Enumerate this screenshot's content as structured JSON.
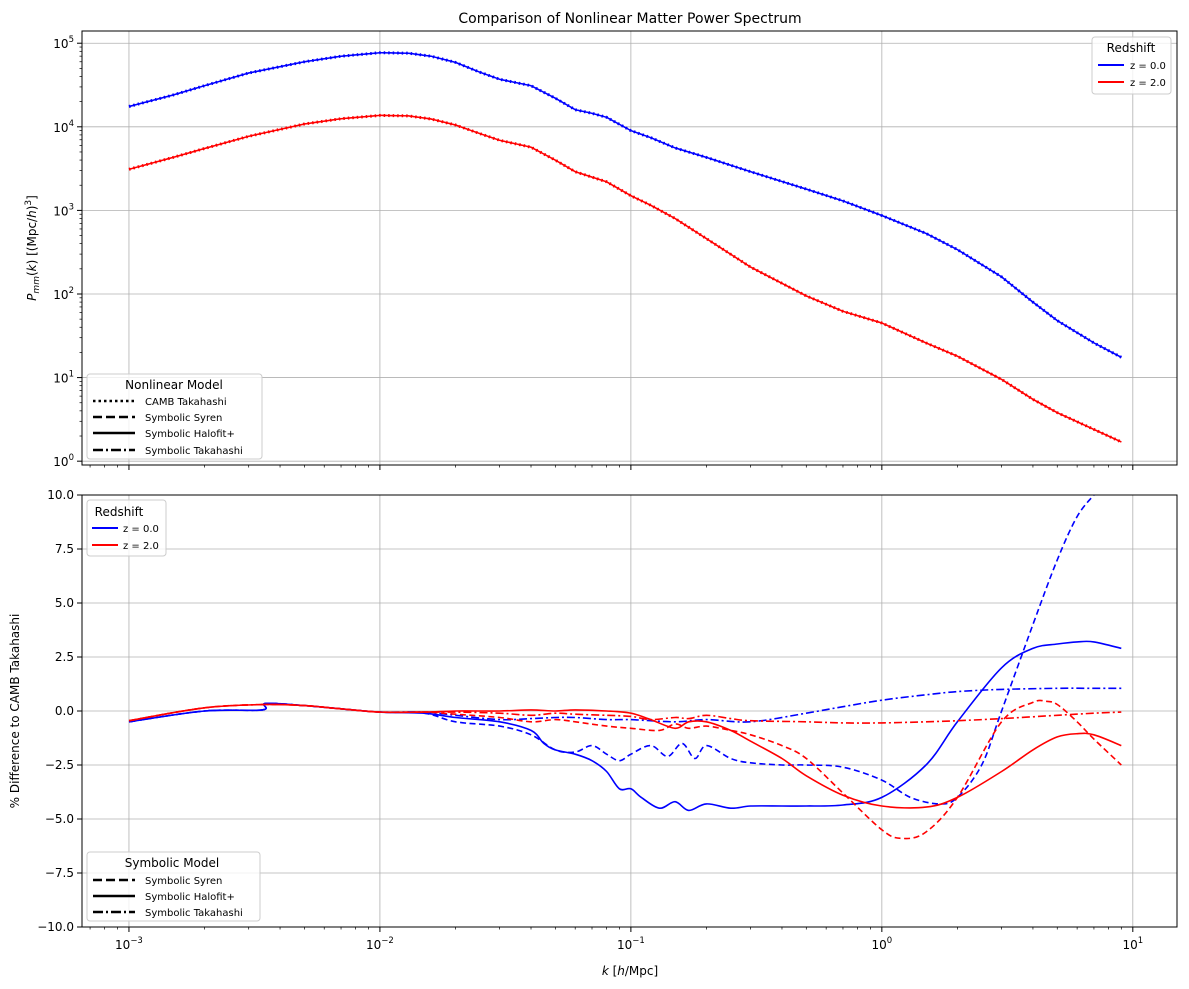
{
  "chart_data": [
    {
      "type": "line",
      "title": "Comparison of Nonlinear Matter Power Spectrum",
      "xlabel": "",
      "ylabel": "P_mm(k) [(Mpc/h)^3]",
      "xscale": "log",
      "yscale": "log",
      "xlim": [
        0.00065,
        15
      ],
      "ylim": [
        0.9,
        140000
      ],
      "x_ticks": [
        "10^-3",
        "10^-2",
        "10^-1",
        "10^0",
        "10^1"
      ],
      "y_ticks": [
        {
          "value": 1,
          "label": "10^0"
        },
        {
          "value": 10,
          "label": "10^1"
        },
        {
          "value": 100,
          "label": "10^2"
        },
        {
          "value": 1000,
          "label": "10^3"
        },
        {
          "value": 10000,
          "label": "10^4"
        },
        {
          "value": 100000,
          "label": "10^5"
        }
      ],
      "grid": true,
      "legends": [
        {
          "title": "Redshift",
          "placement": "top-right",
          "entries": [
            {
              "label": "z = 0.0",
              "color": "#0000ff",
              "style": "solid"
            },
            {
              "label": "z = 2.0",
              "color": "#ff0000",
              "style": "solid"
            }
          ]
        },
        {
          "title": "Nonlinear Model",
          "placement": "bottom-left",
          "entries": [
            {
              "label": "CAMB Takahashi",
              "color": "#000000",
              "style": "dotted"
            },
            {
              "label": "Symbolic Syren",
              "color": "#000000",
              "style": "dashed"
            },
            {
              "label": "Symbolic Halofit+",
              "color": "#000000",
              "style": "solid"
            },
            {
              "label": "Symbolic Takahashi",
              "color": "#000000",
              "style": "dashdot"
            }
          ]
        }
      ],
      "series": [
        {
          "redshift": "z = 0.0",
          "color": "#0000ff",
          "x": [
            0.001,
            0.0015,
            0.002,
            0.003,
            0.005,
            0.007,
            0.01,
            0.013,
            0.016,
            0.02,
            0.025,
            0.03,
            0.04,
            0.05,
            0.06,
            0.07,
            0.08,
            0.1,
            0.12,
            0.15,
            0.2,
            0.3,
            0.5,
            0.7,
            1.0,
            1.5,
            2.0,
            3.0,
            4.0,
            5.0,
            7.0,
            9.0
          ],
          "y": [
            17500,
            24000,
            31000,
            44000,
            60000,
            70000,
            77000,
            76000,
            70000,
            59000,
            45000,
            37000,
            31000,
            22000,
            16000,
            14500,
            13000,
            9000,
            7400,
            5600,
            4300,
            2900,
            1800,
            1300,
            870,
            530,
            340,
            160,
            80,
            48,
            26,
            17.5
          ]
        },
        {
          "redshift": "z = 2.0",
          "color": "#ff0000",
          "x": [
            0.001,
            0.0015,
            0.002,
            0.003,
            0.005,
            0.007,
            0.01,
            0.013,
            0.016,
            0.02,
            0.025,
            0.03,
            0.04,
            0.05,
            0.06,
            0.07,
            0.08,
            0.1,
            0.12,
            0.15,
            0.2,
            0.3,
            0.5,
            0.7,
            1.0,
            1.5,
            2.0,
            3.0,
            4.0,
            5.0,
            7.0,
            9.0
          ],
          "y": [
            3100,
            4300,
            5500,
            7700,
            10800,
            12500,
            13700,
            13500,
            12400,
            10500,
            8300,
            6900,
            5700,
            4000,
            2900,
            2500,
            2200,
            1500,
            1150,
            800,
            460,
            210,
            95,
            62,
            45,
            26,
            18,
            9.5,
            5.5,
            3.8,
            2.4,
            1.7
          ]
        }
      ]
    },
    {
      "type": "line",
      "title": "",
      "xlabel": "k [h/Mpc]",
      "ylabel": "% Difference to CAMB Takahashi",
      "xscale": "log",
      "xlim": [
        0.00065,
        15
      ],
      "ylim": [
        -10,
        10
      ],
      "x_ticks": [
        "10^-3",
        "10^-2",
        "10^-1",
        "10^0",
        "10^1"
      ],
      "y_ticks": [
        "−10.0",
        "−7.5",
        "−5.0",
        "−2.5",
        "0.0",
        "2.5",
        "5.0",
        "7.5",
        "10.0"
      ],
      "grid": true,
      "legends": [
        {
          "title": "Redshift",
          "placement": "top-left",
          "entries": [
            {
              "label": "z = 0.0",
              "color": "#0000ff",
              "style": "solid"
            },
            {
              "label": "z = 2.0",
              "color": "#ff0000",
              "style": "solid"
            }
          ]
        },
        {
          "title": "Symbolic Model",
          "placement": "bottom-left",
          "entries": [
            {
              "label": "Symbolic Syren",
              "color": "#000000",
              "style": "dashed"
            },
            {
              "label": "Symbolic Halofit+",
              "color": "#000000",
              "style": "solid"
            },
            {
              "label": "Symbolic Takahashi",
              "color": "#000000",
              "style": "dashdot"
            }
          ]
        }
      ],
      "series": [
        {
          "model": "Symbolic Syren",
          "redshift": "z = 0.0",
          "color": "#0000ff",
          "style": "dashed",
          "x": [
            0.001,
            0.002,
            0.0034,
            0.0035,
            0.005,
            0.007,
            0.01,
            0.015,
            0.02,
            0.03,
            0.04,
            0.05,
            0.06,
            0.07,
            0.08,
            0.09,
            0.1,
            0.12,
            0.14,
            0.16,
            0.18,
            0.2,
            0.25,
            0.3,
            0.4,
            0.5,
            0.7,
            1.0,
            1.3,
            1.7,
            2.0,
            2.5,
            3.0,
            4.0,
            5.0,
            6.0,
            7.0
          ],
          "y": [
            -0.5,
            0.0,
            0.05,
            0.35,
            0.25,
            0.1,
            -0.05,
            -0.1,
            -0.5,
            -0.7,
            -1.1,
            -1.8,
            -1.9,
            -1.6,
            -2.0,
            -2.3,
            -2.0,
            -1.6,
            -2.1,
            -1.5,
            -2.2,
            -1.6,
            -2.2,
            -2.4,
            -2.5,
            -2.5,
            -2.6,
            -3.2,
            -4.0,
            -4.3,
            -4.0,
            -2.5,
            0.0,
            4.0,
            7.0,
            9.0,
            10.0
          ]
        },
        {
          "model": "Symbolic Halofit+",
          "redshift": "z = 0.0",
          "color": "#0000ff",
          "style": "solid",
          "x": [
            0.001,
            0.002,
            0.0034,
            0.0035,
            0.005,
            0.007,
            0.01,
            0.015,
            0.02,
            0.03,
            0.04,
            0.045,
            0.05,
            0.06,
            0.07,
            0.08,
            0.09,
            0.1,
            0.11,
            0.13,
            0.15,
            0.17,
            0.2,
            0.25,
            0.3,
            0.4,
            0.5,
            0.7,
            1.0,
            1.5,
            2.0,
            3.0,
            4.0,
            5.0,
            6.0,
            7.0,
            9.0
          ],
          "y": [
            -0.5,
            0.0,
            0.05,
            0.35,
            0.25,
            0.1,
            -0.05,
            -0.1,
            -0.3,
            -0.5,
            -0.9,
            -1.5,
            -1.8,
            -2.0,
            -2.3,
            -2.8,
            -3.6,
            -3.6,
            -4.0,
            -4.5,
            -4.2,
            -4.6,
            -4.3,
            -4.5,
            -4.4,
            -4.4,
            -4.4,
            -4.35,
            -4.0,
            -2.5,
            -0.5,
            2.0,
            2.9,
            3.1,
            3.2,
            3.2,
            2.9
          ]
        },
        {
          "model": "Symbolic Takahashi",
          "redshift": "z = 0.0",
          "color": "#0000ff",
          "style": "dashdot",
          "x": [
            0.001,
            0.002,
            0.0034,
            0.0035,
            0.005,
            0.007,
            0.01,
            0.015,
            0.02,
            0.03,
            0.04,
            0.05,
            0.06,
            0.08,
            0.1,
            0.15,
            0.2,
            0.3,
            0.5,
            0.7,
            1.0,
            1.5,
            2.0,
            3.0,
            5.0,
            7.0,
            9.0
          ],
          "y": [
            -0.5,
            0.0,
            0.05,
            0.35,
            0.25,
            0.1,
            -0.05,
            -0.05,
            -0.2,
            -0.4,
            -0.35,
            -0.3,
            -0.3,
            -0.4,
            -0.4,
            -0.5,
            -0.4,
            -0.5,
            -0.1,
            0.2,
            0.5,
            0.75,
            0.9,
            1.0,
            1.05,
            1.05,
            1.05
          ]
        },
        {
          "model": "Symbolic Syren",
          "redshift": "z = 2.0",
          "color": "#ff0000",
          "style": "dashed",
          "x": [
            0.001,
            0.002,
            0.0035,
            0.005,
            0.007,
            0.01,
            0.015,
            0.02,
            0.03,
            0.04,
            0.05,
            0.06,
            0.08,
            0.1,
            0.13,
            0.15,
            0.17,
            0.2,
            0.25,
            0.3,
            0.4,
            0.5,
            0.7,
            1.0,
            1.2,
            1.5,
            2.0,
            3.0,
            4.0,
            4.5,
            5.0,
            6.0,
            7.0,
            9.0
          ],
          "y": [
            -0.45,
            0.15,
            0.3,
            0.25,
            0.1,
            -0.05,
            -0.05,
            -0.15,
            -0.3,
            -0.5,
            -0.4,
            -0.5,
            -0.7,
            -0.8,
            -0.9,
            -0.6,
            -0.8,
            -0.7,
            -0.9,
            -1.1,
            -1.6,
            -2.2,
            -3.8,
            -5.5,
            -5.9,
            -5.6,
            -4.0,
            -0.5,
            0.4,
            0.45,
            0.3,
            -0.5,
            -1.3,
            -2.5
          ]
        },
        {
          "model": "Symbolic Halofit+",
          "redshift": "z = 2.0",
          "color": "#ff0000",
          "style": "solid",
          "x": [
            0.001,
            0.002,
            0.0035,
            0.005,
            0.007,
            0.01,
            0.015,
            0.02,
            0.03,
            0.04,
            0.05,
            0.06,
            0.08,
            0.1,
            0.12,
            0.15,
            0.17,
            0.2,
            0.25,
            0.3,
            0.4,
            0.5,
            0.7,
            1.0,
            1.5,
            2.0,
            3.0,
            4.0,
            5.0,
            6.0,
            7.0,
            9.0
          ],
          "y": [
            -0.45,
            0.15,
            0.3,
            0.25,
            0.1,
            -0.05,
            -0.05,
            0.0,
            0.0,
            0.05,
            0.0,
            0.05,
            0.0,
            -0.1,
            -0.4,
            -0.8,
            -0.5,
            -0.5,
            -0.9,
            -1.4,
            -2.2,
            -3.0,
            -3.9,
            -4.4,
            -4.45,
            -4.0,
            -2.8,
            -1.8,
            -1.2,
            -1.05,
            -1.1,
            -1.6
          ]
        },
        {
          "model": "Symbolic Takahashi",
          "redshift": "z = 2.0",
          "color": "#ff0000",
          "style": "dashdot",
          "x": [
            0.001,
            0.002,
            0.0035,
            0.005,
            0.007,
            0.01,
            0.015,
            0.02,
            0.03,
            0.04,
            0.05,
            0.06,
            0.08,
            0.1,
            0.12,
            0.15,
            0.17,
            0.2,
            0.25,
            0.3,
            0.5,
            0.7,
            1.0,
            1.5,
            2.0,
            3.0,
            5.0,
            7.0,
            9.0
          ],
          "y": [
            -0.45,
            0.15,
            0.3,
            0.25,
            0.1,
            -0.05,
            -0.05,
            -0.05,
            -0.1,
            -0.2,
            -0.1,
            -0.15,
            -0.2,
            -0.25,
            -0.4,
            -0.3,
            -0.35,
            -0.2,
            -0.35,
            -0.45,
            -0.5,
            -0.55,
            -0.55,
            -0.5,
            -0.45,
            -0.35,
            -0.2,
            -0.1,
            -0.05
          ]
        }
      ]
    }
  ]
}
